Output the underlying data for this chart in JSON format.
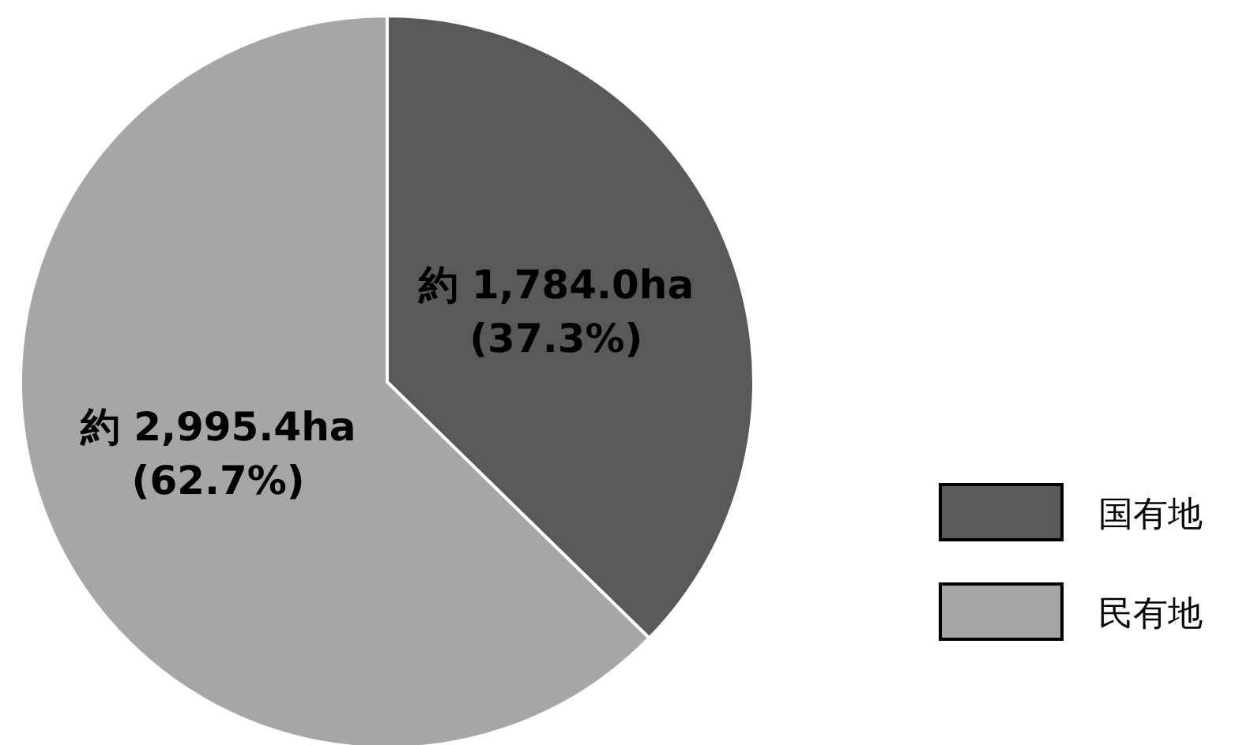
{
  "chart_data": {
    "type": "pie",
    "categories": [
      "国有地",
      "民有地"
    ],
    "values": [
      1784.0,
      2995.4
    ],
    "colors": [
      "#595959",
      "#a6a6a6"
    ],
    "value_labels": [
      "約 1,784.0ha\n(37.3%)",
      "約 2,995.4ha\n(62.7%)"
    ],
    "legend": "right"
  }
}
